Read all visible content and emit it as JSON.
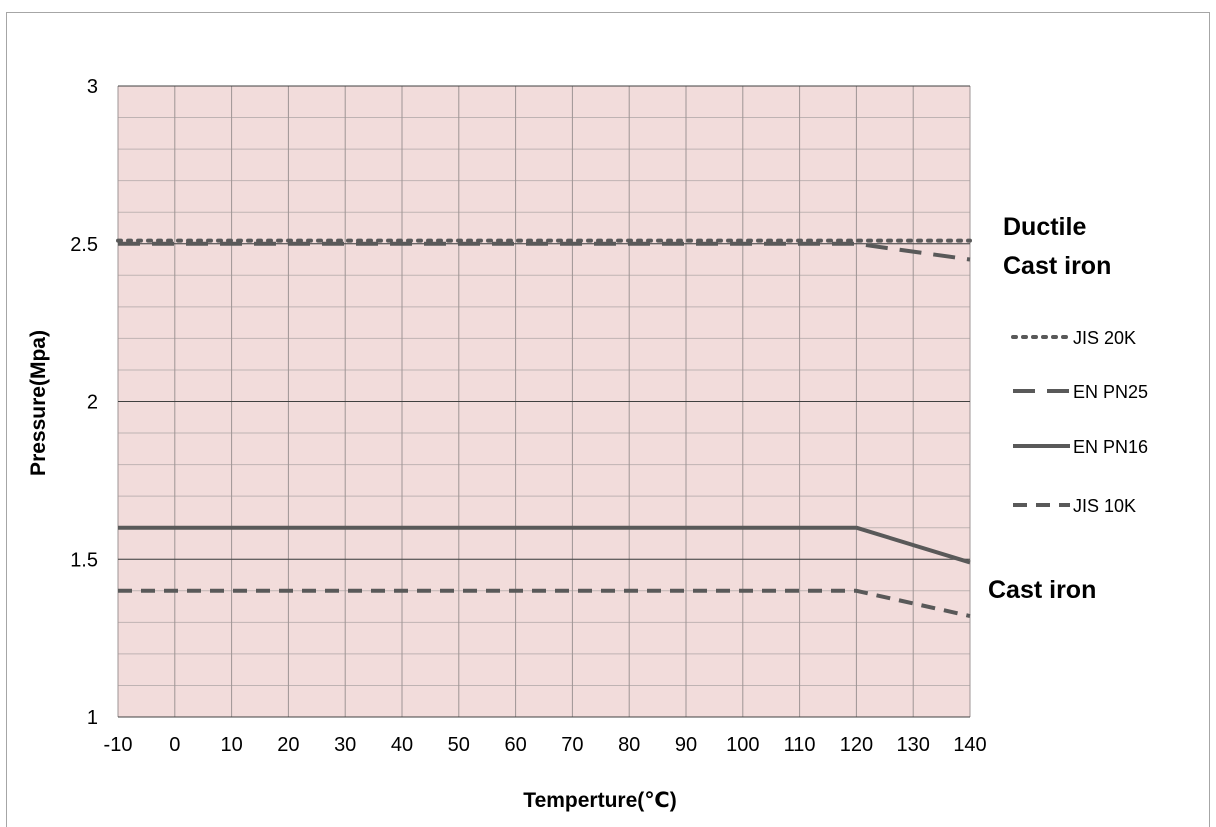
{
  "chart_data": {
    "type": "line",
    "title": "",
    "xlabel": "Temperture(℃)",
    "ylabel": "Pressure(Mpa)",
    "xlim": [
      -10,
      140
    ],
    "ylim": [
      1,
      3
    ],
    "x_ticks": [
      "-10",
      "0",
      "10",
      "20",
      "30",
      "40",
      "50",
      "60",
      "70",
      "80",
      "90",
      "100",
      "110",
      "120",
      "130",
      "140"
    ],
    "y_ticks": [
      "1",
      "1.5",
      "2",
      "2.5",
      "3"
    ],
    "grid": true,
    "plot_background": "#f2dcdb",
    "line_color": "#595959",
    "legend_position": "right",
    "series": [
      {
        "name": "JIS 20K",
        "style": "dotted",
        "x": [
          -10,
          140
        ],
        "y": [
          2.51,
          2.51
        ]
      },
      {
        "name": "EN PN25",
        "style": "long-dash",
        "x": [
          -10,
          120,
          140
        ],
        "y": [
          2.5,
          2.5,
          2.45
        ]
      },
      {
        "name": "EN PN16",
        "style": "solid",
        "x": [
          -10,
          120,
          140
        ],
        "y": [
          1.6,
          1.6,
          1.49
        ]
      },
      {
        "name": "JIS 10K",
        "style": "dash",
        "x": [
          -10,
          120,
          140
        ],
        "y": [
          1.4,
          1.4,
          1.32
        ]
      }
    ],
    "annotations": [
      {
        "text": "Ductile",
        "near_series": "EN PN25"
      },
      {
        "text": "Cast iron",
        "near_series": "EN PN25"
      },
      {
        "text": "Cast iron",
        "near_series": "EN PN16"
      }
    ]
  }
}
